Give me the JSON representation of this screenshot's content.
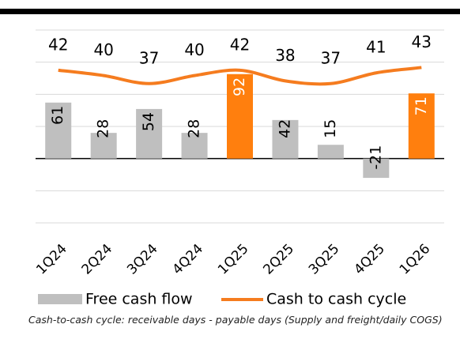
{
  "chart_data": {
    "type": "bar_line",
    "categories": [
      "1Q24",
      "2Q24",
      "3Q24",
      "4Q24",
      "1Q25",
      "2Q25",
      "3Q25",
      "4Q25",
      "1Q26"
    ],
    "series": [
      {
        "name": "Free cash flow",
        "type": "bar",
        "color": "#bfbfbf",
        "colors": [
          "#bfbfbf",
          "#bfbfbf",
          "#bfbfbf",
          "#bfbfbf",
          "#ff7f0e",
          "#bfbfbf",
          "#bfbfbf",
          "#bfbfbf",
          "#ff7f0e"
        ],
        "values": [
          61,
          28,
          54,
          28,
          92,
          42,
          15,
          -21,
          71
        ]
      },
      {
        "name": "Cash to cash cycle",
        "type": "line",
        "color": "#f57c1f",
        "axis": "y2",
        "values": [
          42,
          40,
          37,
          40,
          42,
          38,
          37,
          41,
          43
        ]
      }
    ],
    "ylim": [
      -70,
      140
    ],
    "yticks": [
      -70,
      -35,
      0,
      35,
      70,
      105,
      140
    ],
    "y2lim": [
      -15,
      57
    ],
    "grid": true,
    "note": "Cash-to-cash cycle: receivable days - payable days (Supply and freight/daily COGS)"
  }
}
